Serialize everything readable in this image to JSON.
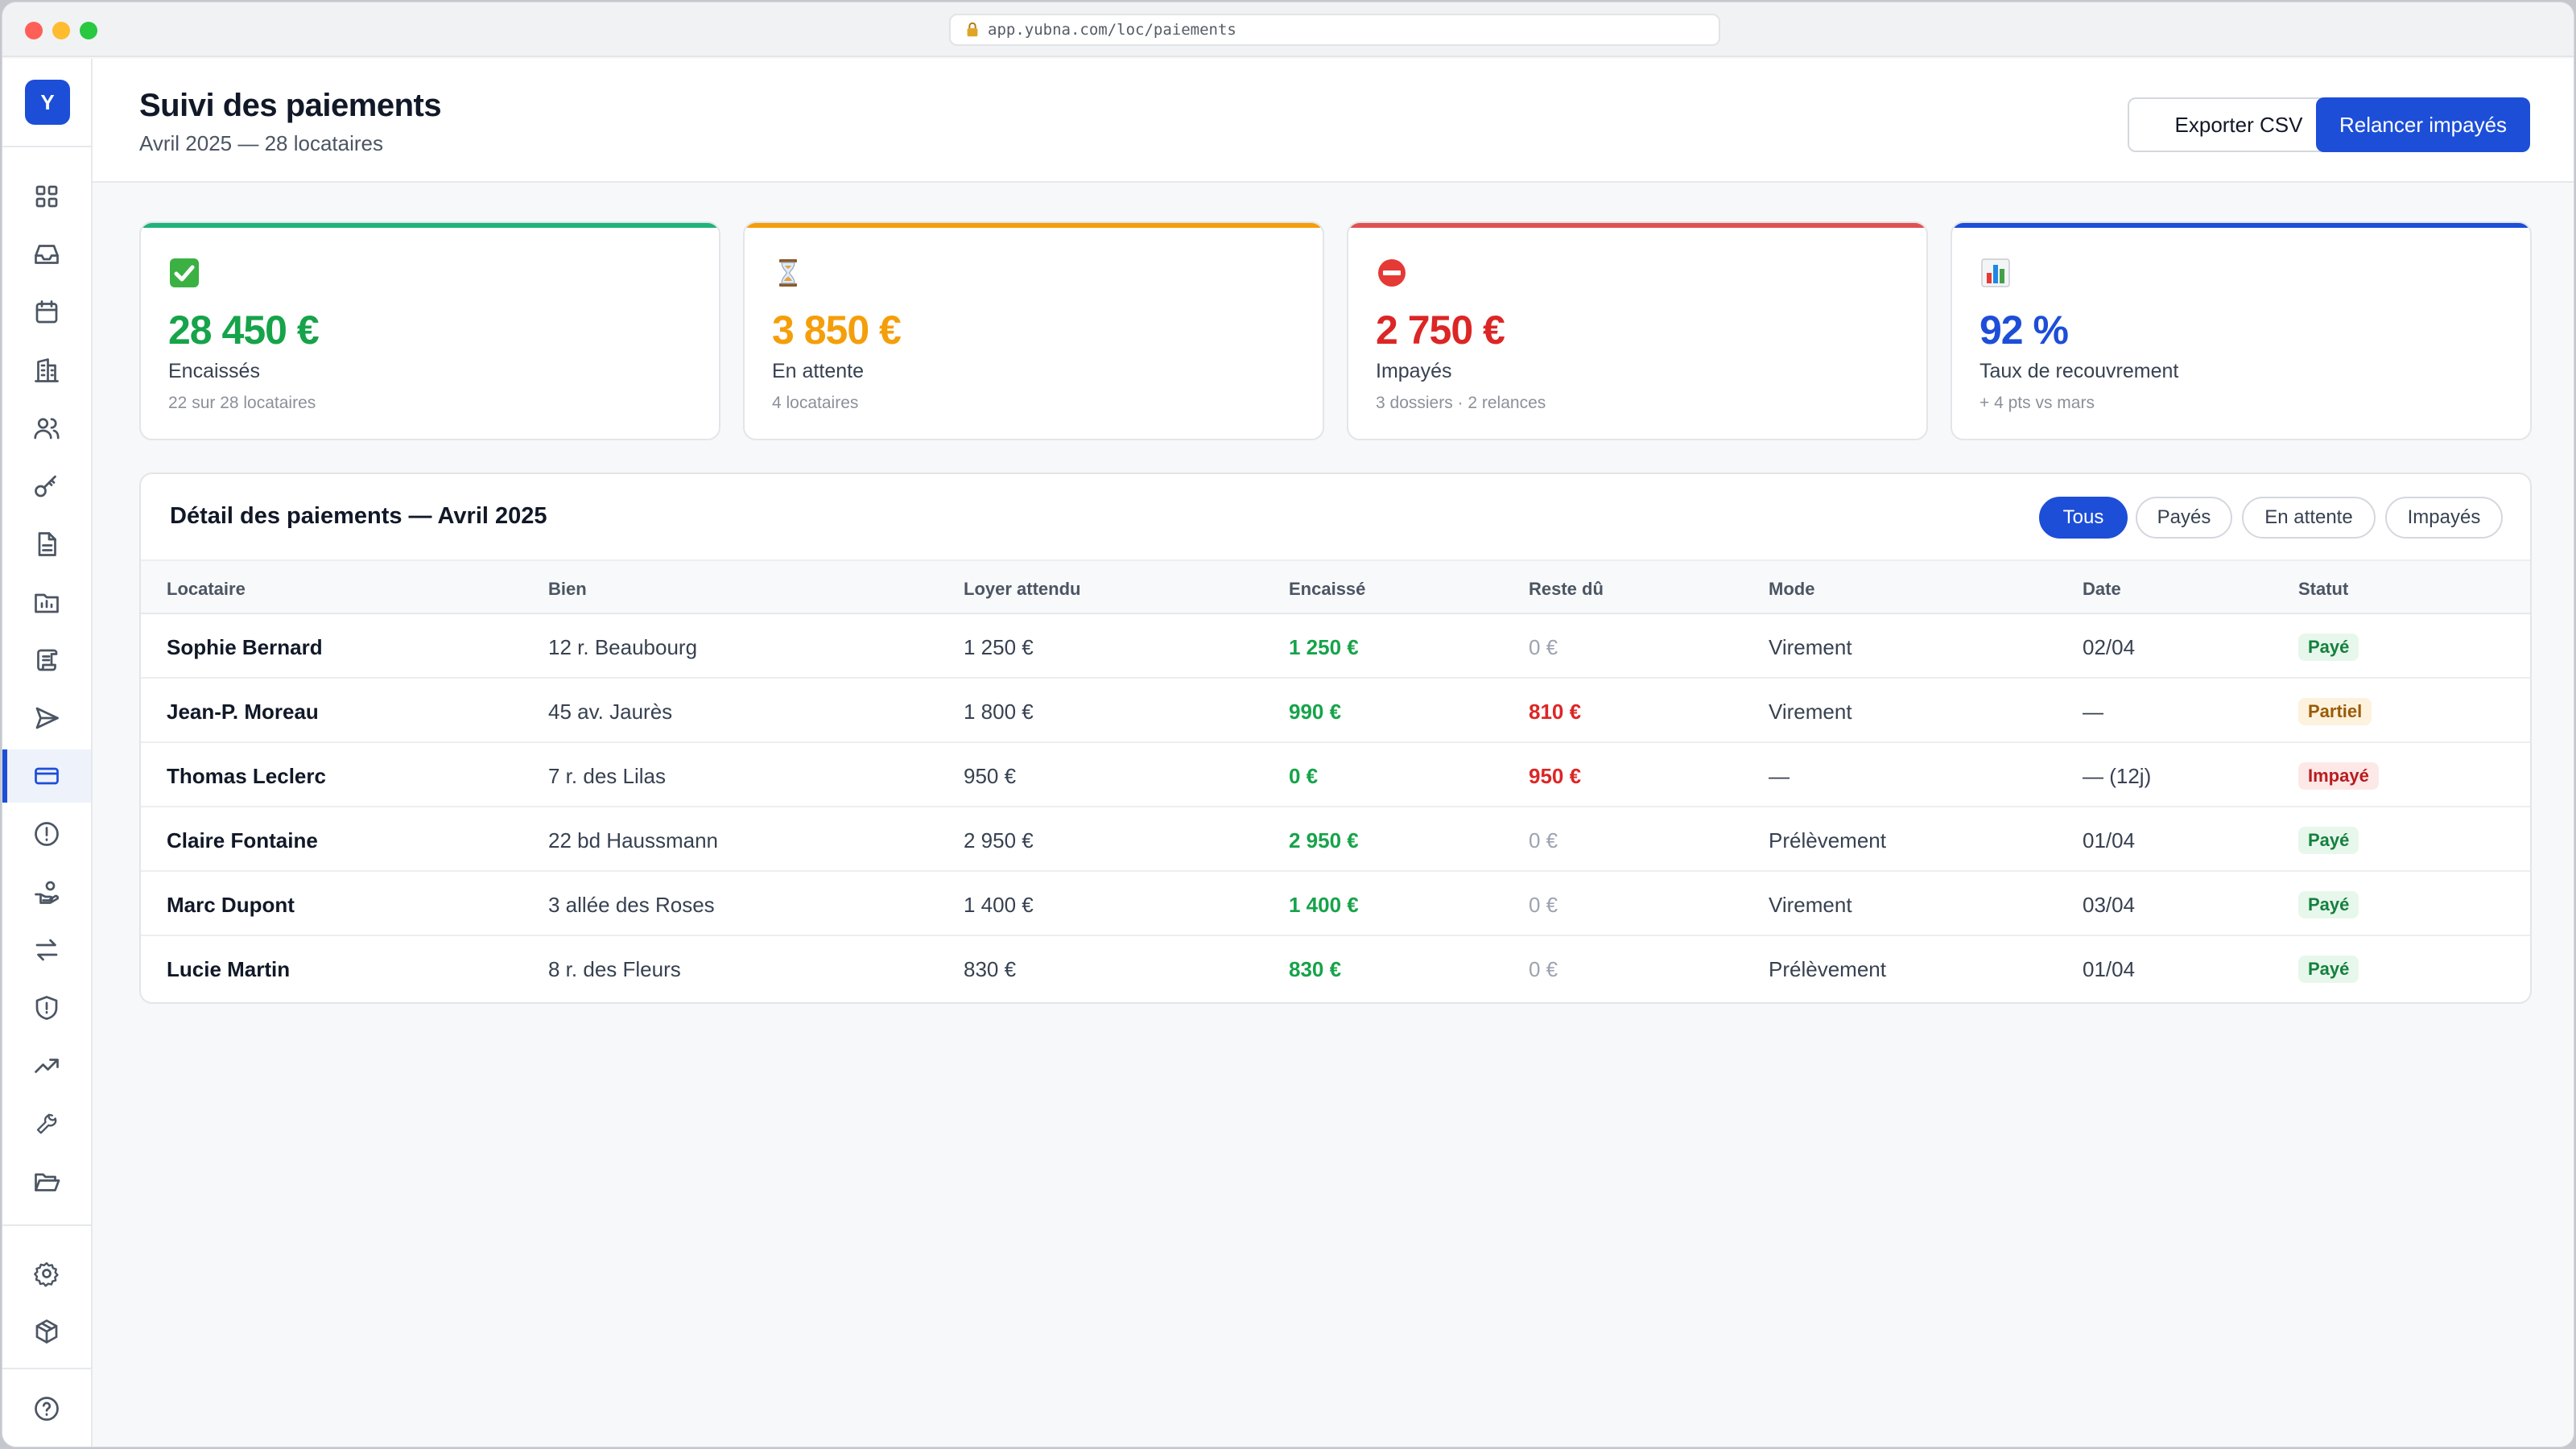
{
  "browser": {
    "url": "app.yubna.com/loc/paiements"
  },
  "sidebar": {
    "logo": "Y",
    "items": [
      {
        "icon": "dashboard-icon"
      },
      {
        "icon": "inbox-icon"
      },
      {
        "icon": "calendar-icon"
      },
      {
        "icon": "building-icon"
      },
      {
        "icon": "users-icon"
      },
      {
        "icon": "key-icon"
      },
      {
        "icon": "document-icon"
      },
      {
        "icon": "folder-chart-icon"
      },
      {
        "icon": "scroll-icon"
      },
      {
        "icon": "send-icon"
      },
      {
        "icon": "credit-card-icon",
        "active": true
      },
      {
        "icon": "alert-circle-icon"
      },
      {
        "icon": "hand-coins-icon"
      },
      {
        "icon": "transfer-icon"
      },
      {
        "icon": "shield-alert-icon"
      },
      {
        "icon": "trending-up-icon"
      },
      {
        "icon": "wrench-icon"
      },
      {
        "icon": "folder-open-icon"
      },
      {
        "icon": "settings-icon"
      },
      {
        "icon": "package-icon"
      },
      {
        "icon": "help-icon"
      }
    ]
  },
  "header": {
    "title": "Suivi des paiements",
    "subtitle": "Avril 2025 — 28 locataires",
    "export_label": "Exporter CSV",
    "remind_label": "Relancer impayés"
  },
  "stats": [
    {
      "icon": "check-emoji",
      "value": "28 450 €",
      "label": "Encaissés",
      "sub": "22 sur 28 locataires",
      "color": "#16a34a",
      "accent": "#1fb37a"
    },
    {
      "icon": "hourglass-emoji",
      "value": "3 850 €",
      "label": "En attente",
      "sub": "4 locataires",
      "color": "#f59e0b",
      "accent": "#f59e0b"
    },
    {
      "icon": "no-entry-emoji",
      "value": "2 750 €",
      "label": "Impayés",
      "sub": "3 dossiers · 2 relances",
      "color": "#dc2626",
      "accent": "#e05252"
    },
    {
      "icon": "bar-chart-emoji",
      "value": "92 %",
      "label": "Taux de recouvrement",
      "sub": "+ 4 pts vs mars",
      "color": "#1d4ed8",
      "accent": "#1d4ed8"
    }
  ],
  "table": {
    "title": "Détail des paiements — Avril 2025",
    "filters": [
      "Tous",
      "Payés",
      "En attente",
      "Impayés"
    ],
    "active_filter": "Tous",
    "columns": [
      "Locataire",
      "Bien",
      "Loyer attendu",
      "Encaissé",
      "Reste dû",
      "Mode",
      "Date",
      "Statut"
    ],
    "rows": [
      {
        "tenant": "Sophie Bernard",
        "property": "12 r. Beaubourg",
        "expected": "1 250 €",
        "paid": "1 250 €",
        "due": "0 €",
        "mode": "Virement",
        "date": "02/04",
        "status": "Payé",
        "status_kind": "paid"
      },
      {
        "tenant": "Jean-P. Moreau",
        "property": "45 av. Jaurès",
        "expected": "1 800 €",
        "paid": "990 €",
        "due": "810 €",
        "mode": "Virement",
        "date": "—",
        "status": "Partiel",
        "status_kind": "partial"
      },
      {
        "tenant": "Thomas Leclerc",
        "property": "7 r. des Lilas",
        "expected": "950 €",
        "paid": "0 €",
        "due": "950 €",
        "mode": "—",
        "date": "— (12j)",
        "status": "Impayé",
        "status_kind": "unpaid"
      },
      {
        "tenant": "Claire Fontaine",
        "property": "22 bd Haussmann",
        "expected": "2 950 €",
        "paid": "2 950 €",
        "due": "0 €",
        "mode": "Prélèvement",
        "date": "01/04",
        "status": "Payé",
        "status_kind": "paid"
      },
      {
        "tenant": "Marc Dupont",
        "property": "3 allée des Roses",
        "expected": "1 400 €",
        "paid": "1 400 €",
        "due": "0 €",
        "mode": "Virement",
        "date": "03/04",
        "status": "Payé",
        "status_kind": "paid"
      },
      {
        "tenant": "Lucie Martin",
        "property": "8 r. des Fleurs",
        "expected": "830 €",
        "paid": "830 €",
        "due": "0 €",
        "mode": "Prélèvement",
        "date": "01/04",
        "status": "Payé",
        "status_kind": "paid"
      }
    ]
  }
}
